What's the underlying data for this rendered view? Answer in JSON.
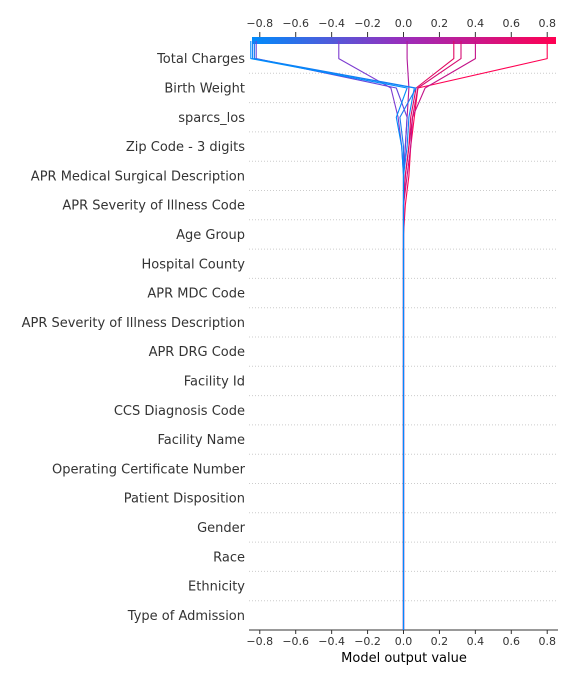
{
  "chart_data": {
    "type": "line",
    "subtype": "shap-decision-plot",
    "xlabel": "Model output value",
    "xlim": [
      -0.86,
      0.86
    ],
    "x_ticks": [
      -0.8,
      -0.6,
      -0.4,
      -0.2,
      0.0,
      0.2,
      0.4,
      0.6,
      0.8
    ],
    "x_tick_labels": [
      "−0.8",
      "−0.6",
      "−0.4",
      "−0.2",
      "0.0",
      "0.2",
      "0.4",
      "0.6",
      "0.8"
    ],
    "base_value": 0.0,
    "features": [
      "Total Charges",
      "Birth Weight",
      "sparcs_los",
      "Zip Code - 3 digits",
      "APR Medical Surgical Description",
      "APR Severity of Illness Code",
      "Age Group",
      "Hospital County",
      "APR MDC Code",
      "APR Severity of Illness Description",
      "APR DRG Code",
      "Facility Id",
      "CCS Diagnosis Code",
      "Facility Name",
      "Operating Certificate Number",
      "Patient Disposition",
      "Gender",
      "Race",
      "Ethnicity",
      "Type of Admission"
    ],
    "colorbar": {
      "low_color": "#008bfb",
      "mid_color": "#9b2dbb",
      "high_color": "#ff0052"
    },
    "grid": true,
    "samples": [
      {
        "color": "#ff0052",
        "path": [
          0.0,
          0,
          0,
          0,
          0,
          0,
          0,
          0,
          0,
          0,
          0,
          0,
          0,
          0,
          0.01,
          0.03,
          0.04,
          0.06,
          0.08,
          0.8
        ]
      },
      {
        "color": "#c31288",
        "path": [
          0.0,
          0,
          0,
          0,
          0,
          0,
          0,
          0,
          0,
          0,
          0,
          0,
          0,
          0,
          0,
          0.02,
          0.04,
          0.05,
          0.12,
          0.4
        ]
      },
      {
        "color": "#d50c72",
        "path": [
          0.0,
          0,
          0,
          0,
          0,
          0,
          0,
          0,
          0,
          0,
          0,
          0,
          0,
          0,
          0,
          0.01,
          0.03,
          0.05,
          0.08,
          0.32
        ]
      },
      {
        "color": "#e10860",
        "path": [
          0.0,
          0,
          0,
          0,
          0,
          0,
          0,
          0,
          0,
          0,
          0,
          0,
          0,
          0,
          0,
          0.01,
          0.03,
          0.04,
          0.07,
          0.28
        ]
      },
      {
        "color": "#b0189b",
        "path": [
          0.0,
          0,
          0,
          0,
          0,
          0,
          0,
          0,
          0,
          0,
          0,
          0,
          0,
          0,
          0,
          0,
          0.01,
          0.02,
          0.03,
          0.02
        ]
      },
      {
        "color": "#7d3cd0",
        "path": [
          0.0,
          0,
          0,
          0,
          0,
          0,
          0,
          0,
          0,
          0,
          0,
          0,
          0,
          0,
          0,
          0,
          -0.01,
          -0.03,
          -0.07,
          -0.36
        ]
      },
      {
        "color": "#6446dc",
        "path": [
          0.0,
          0,
          0,
          0,
          0,
          0,
          0,
          0,
          0,
          0,
          0,
          0,
          0,
          0,
          0,
          0,
          0.01,
          0.02,
          -0.04,
          -0.82
        ]
      },
      {
        "color": "#1e7af0",
        "path": [
          0.0,
          0,
          0,
          0,
          0,
          0,
          0,
          0,
          0,
          0,
          0,
          0,
          0,
          0,
          0,
          0,
          0.0,
          -0.02,
          0.07,
          -0.83
        ]
      },
      {
        "color": "#0f82f5",
        "path": [
          0.0,
          0,
          0,
          0,
          0,
          0,
          0,
          0,
          0,
          0,
          0,
          0,
          0,
          0,
          0,
          0,
          0.02,
          0.03,
          0.06,
          -0.84
        ]
      },
      {
        "color": "#008bfb",
        "path": [
          0.0,
          0,
          0,
          0,
          0,
          0,
          0,
          0,
          0,
          0,
          0,
          0,
          0,
          0,
          0,
          0,
          -0.01,
          -0.04,
          0.02,
          -0.85
        ]
      }
    ]
  }
}
